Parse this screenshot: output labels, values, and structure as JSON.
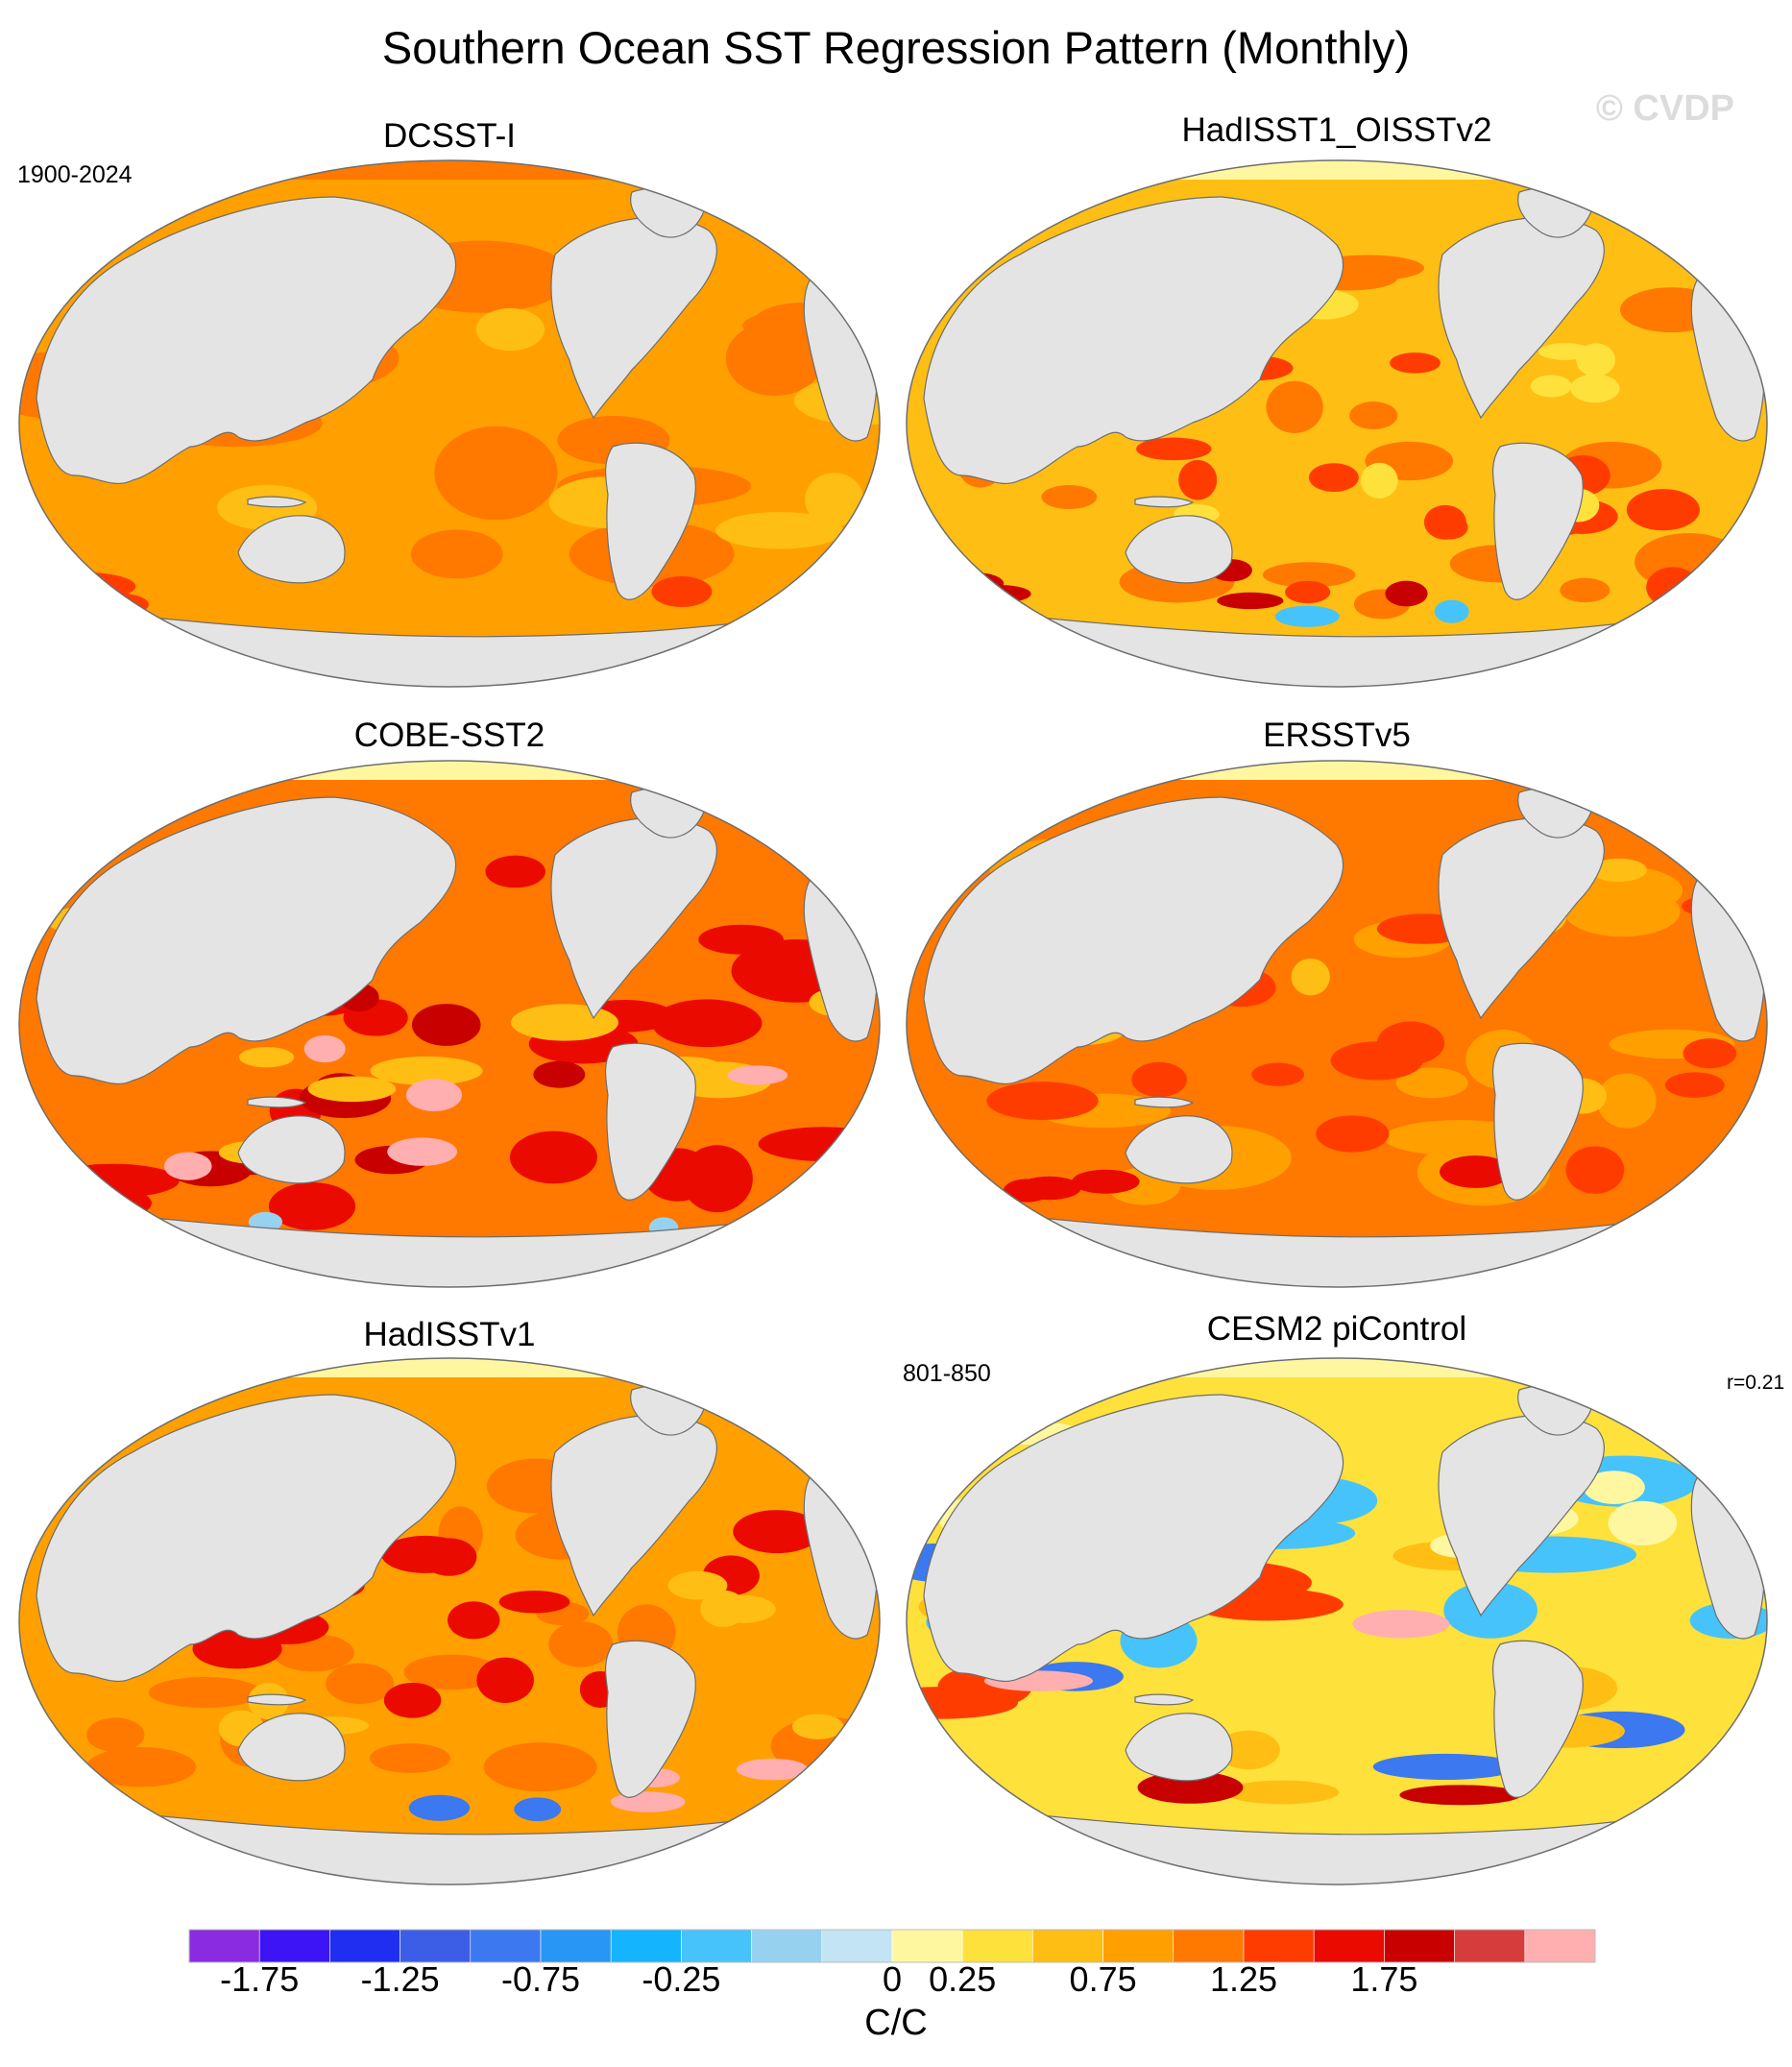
{
  "title": "Southern Ocean SST Regression Pattern (Monthly)",
  "watermark": "© CVDP",
  "top_left_note": "1900-2024",
  "panels": [
    {
      "title": "DCSST-I",
      "theme": "dcsst"
    },
    {
      "title": "HadISST1_OISSTv2",
      "theme": "hadoi"
    },
    {
      "title": "COBE-SST2",
      "theme": "cobe"
    },
    {
      "title": "ERSSTv5",
      "theme": "ersst"
    },
    {
      "title": "HadISSTv1",
      "theme": "hadisst"
    },
    {
      "title": "CESM2 piControl",
      "theme": "cesm",
      "left_note": "801-850",
      "right_note": "r=0.21"
    }
  ],
  "colorbar": {
    "units": "C/C",
    "tick_labels": [
      "-1.75",
      "-1.25",
      "-0.75",
      "-0.25",
      "0",
      "0.25",
      "0.75",
      "1.25",
      "1.75"
    ],
    "colors": [
      "#8a2be2",
      "#3c14f5",
      "#1f2ef0",
      "#3c5ee6",
      "#3c78ef",
      "#2896f5",
      "#14b4ff",
      "#46c3fa",
      "#96d2f0",
      "#c2e4f5",
      "#fff7a0",
      "#ffe13c",
      "#ffbe14",
      "#ffa000",
      "#ff7800",
      "#ff3c00",
      "#eb0a00",
      "#c80000",
      "#d73c3c",
      "#ffafaf"
    ]
  }
}
